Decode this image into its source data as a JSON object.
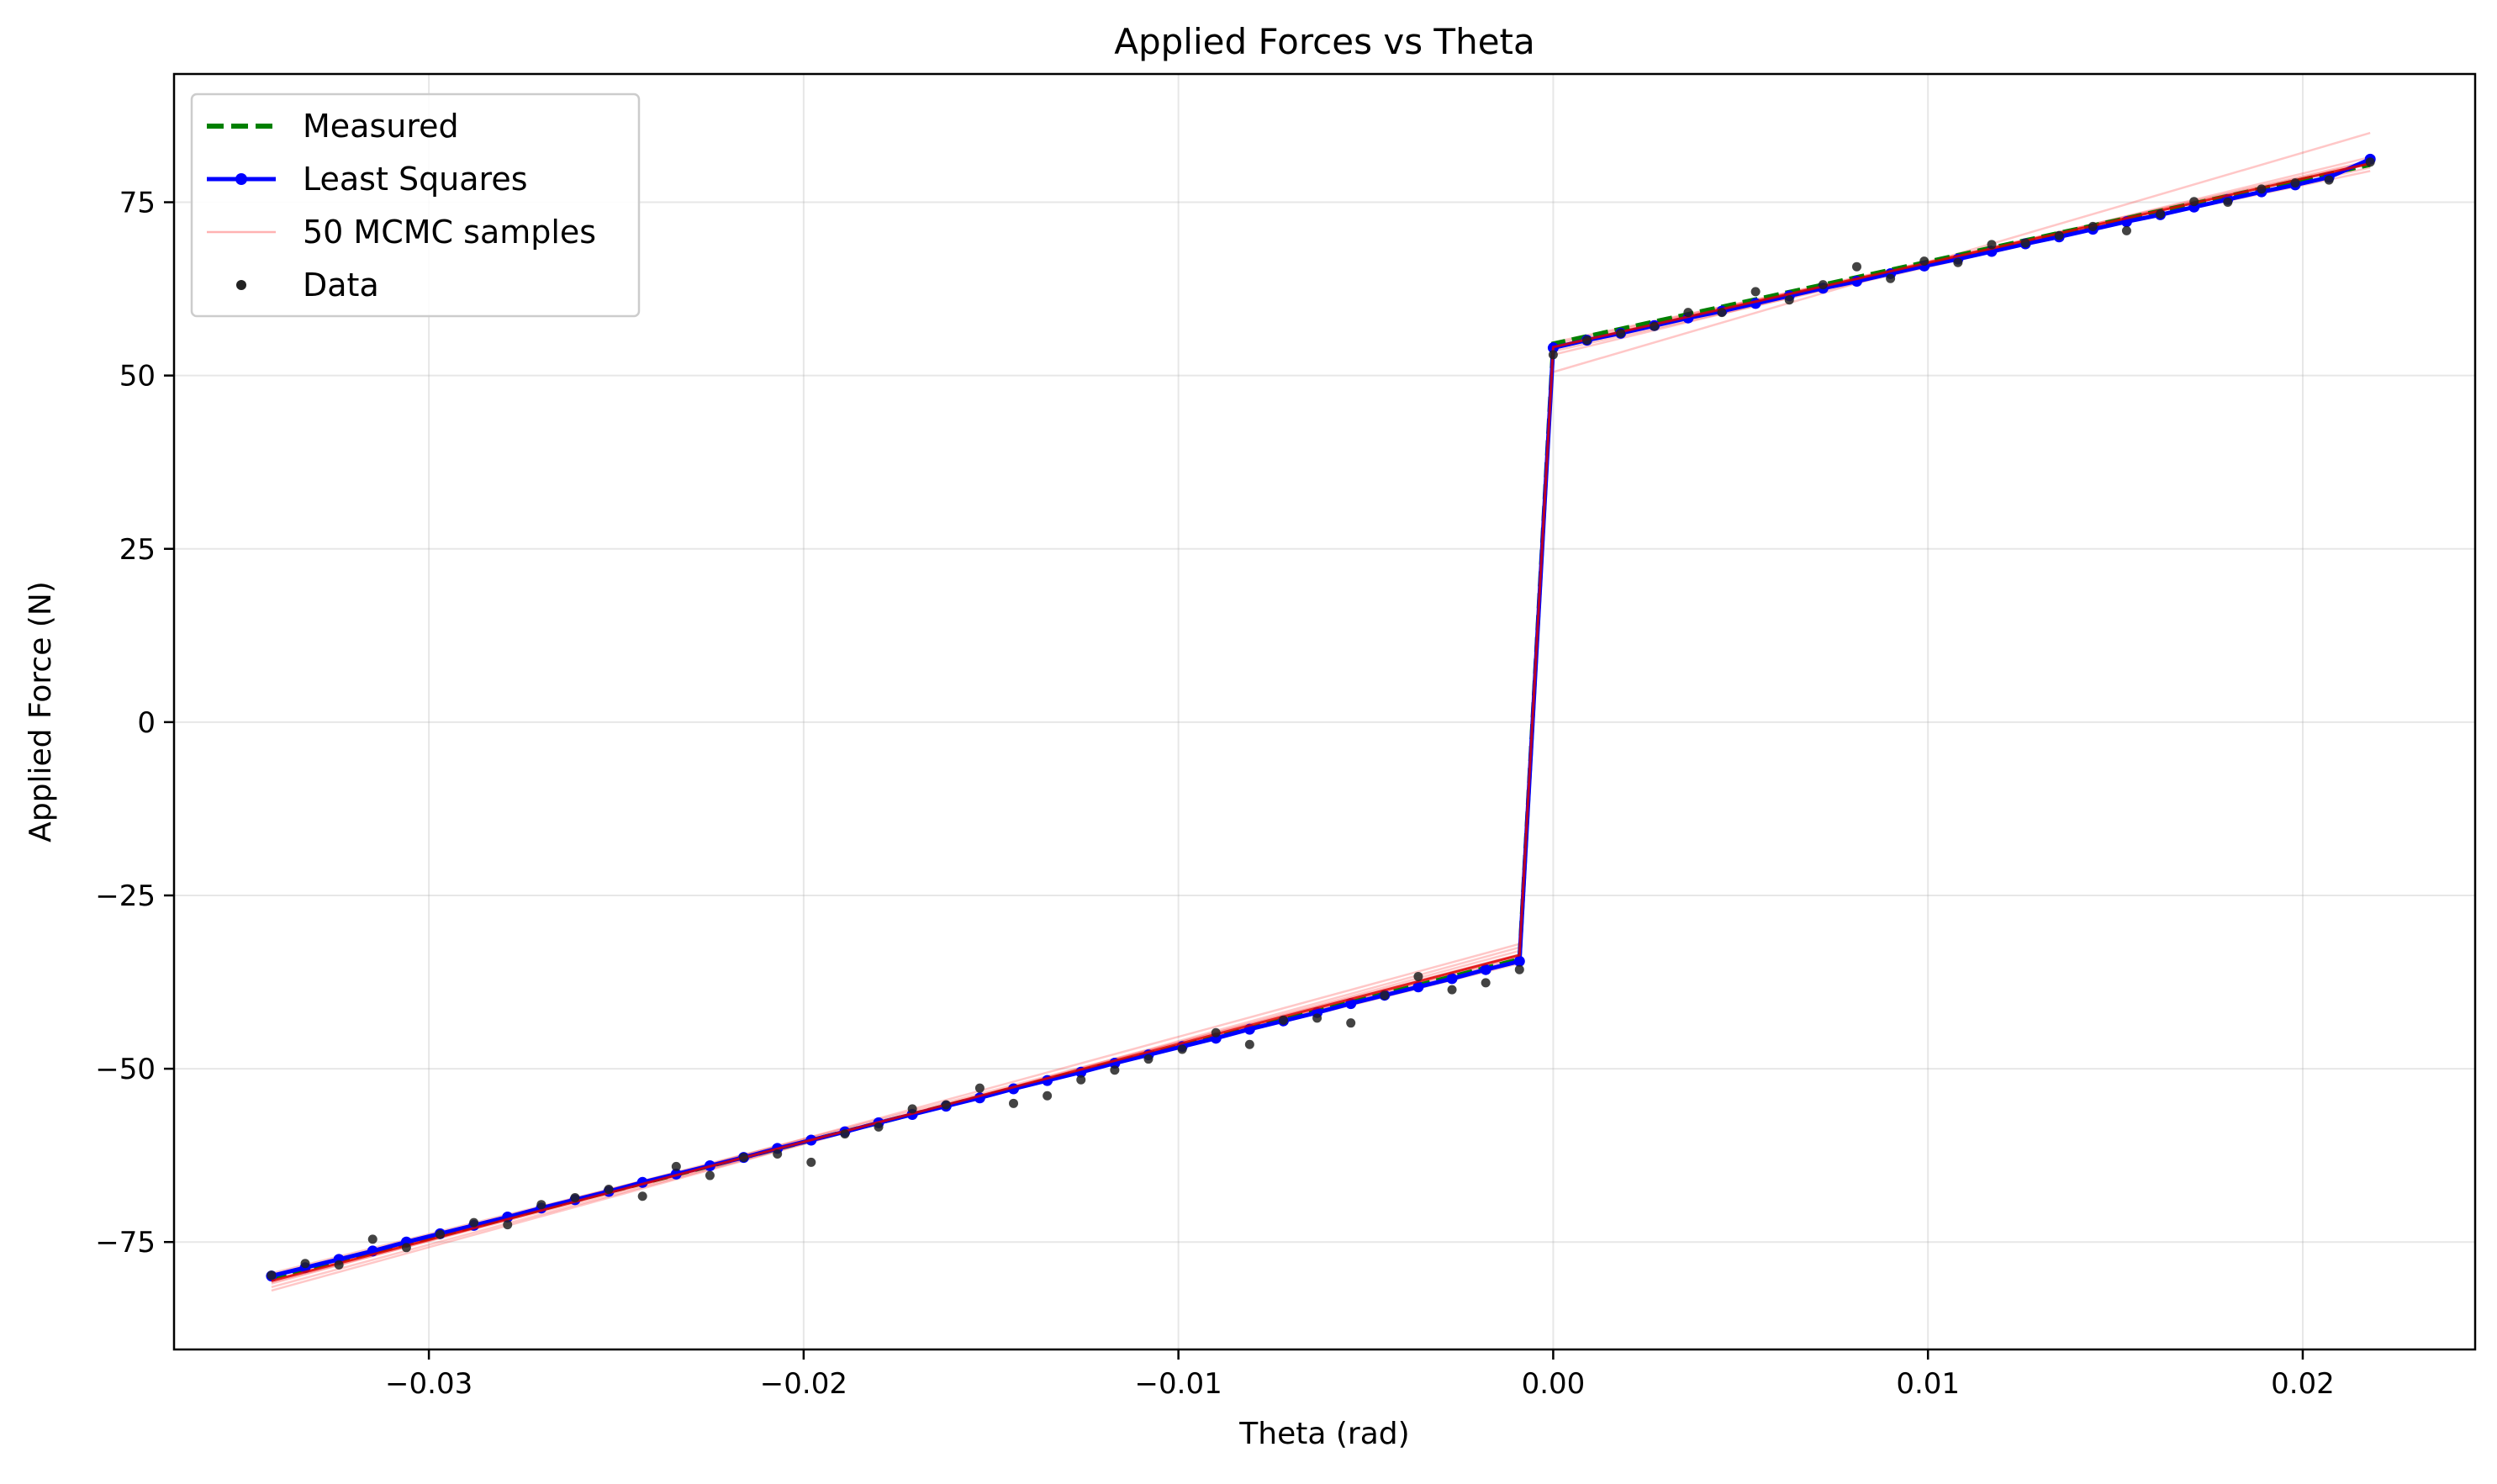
{
  "chart_data": {
    "type": "line",
    "title": "Applied Forces vs Theta",
    "xlabel": "Theta (rad)",
    "ylabel": "Applied Force (N)",
    "xlim": [
      -0.0368,
      0.0246
    ],
    "ylim": [
      -90.5,
      93.5
    ],
    "x_ticks": [
      -0.03,
      -0.02,
      -0.01,
      0.0,
      0.01,
      0.02
    ],
    "x_tick_labels": [
      "−0.03",
      "−0.02",
      "−0.01",
      "0.00",
      "0.01",
      "0.02"
    ],
    "y_ticks": [
      -75,
      -50,
      -25,
      0,
      25,
      50,
      75
    ],
    "y_tick_labels": [
      "−75",
      "−50",
      "−25",
      "0",
      "25",
      "50",
      "75"
    ],
    "grid": true,
    "legend_position": "top-left",
    "colors": {
      "measured": "#008000",
      "least_squares": "#0000ff",
      "mcmc": "#ff0000",
      "data": "#000000"
    },
    "series": [
      {
        "name": "Measured",
        "style": "dashed",
        "color": "#008000",
        "x": [
          -0.0342,
          -0.0009,
          0.0,
          0.0218
        ],
        "y": [
          -80.2,
          -34.2,
          54.6,
          80.4
        ]
      },
      {
        "name": "Least Squares",
        "style": "solid-with-markers",
        "color": "#0000ff",
        "x": [
          -0.0342,
          -0.0333,
          -0.0324,
          -0.0315,
          -0.0306,
          -0.0297,
          -0.0288,
          -0.0279,
          -0.027,
          -0.0261,
          -0.0252,
          -0.0243,
          -0.0234,
          -0.0225,
          -0.0216,
          -0.0207,
          -0.0198,
          -0.0189,
          -0.018,
          -0.0171,
          -0.0162,
          -0.0153,
          -0.0144,
          -0.0135,
          -0.0126,
          -0.0117,
          -0.0108,
          -0.0099,
          -0.009,
          -0.0081,
          -0.0072,
          -0.0063,
          -0.0054,
          -0.0045,
          -0.0036,
          -0.0027,
          -0.0018,
          -0.0009,
          0.0,
          0.0009,
          0.0018,
          0.0027,
          0.0036,
          0.0045,
          0.0054,
          0.0063,
          0.0072,
          0.0081,
          0.009,
          0.0099,
          0.0108,
          0.0117,
          0.0126,
          0.0135,
          0.0144,
          0.0153,
          0.0162,
          0.0171,
          0.018,
          0.0189,
          0.0198,
          0.0207,
          0.0218
        ],
        "y": [
          -79.9,
          -78.7,
          -77.5,
          -76.3,
          -75.0,
          -73.8,
          -72.6,
          -71.4,
          -70.1,
          -68.9,
          -67.7,
          -66.4,
          -65.2,
          -64.0,
          -62.8,
          -61.5,
          -60.3,
          -59.1,
          -57.8,
          -56.6,
          -55.4,
          -54.2,
          -52.9,
          -51.7,
          -50.5,
          -49.2,
          -48.0,
          -46.8,
          -45.6,
          -44.3,
          -43.1,
          -41.9,
          -40.6,
          -39.4,
          -38.2,
          -37.0,
          -35.7,
          -34.5,
          54.0,
          55.1,
          56.1,
          57.2,
          58.3,
          59.3,
          60.4,
          61.5,
          62.6,
          63.6,
          64.7,
          65.8,
          66.8,
          67.9,
          69.0,
          70.0,
          71.1,
          72.2,
          73.2,
          74.3,
          75.4,
          76.5,
          77.5,
          78.6,
          81.2
        ]
      },
      {
        "name": "50 MCMC samples",
        "style": "thin-translucent",
        "color": "#ff0000",
        "samples": [
          {
            "x": [
              -0.0342,
              -0.0009,
              0.0,
              0.0218
            ],
            "y": [
              -81.5,
              -33.0,
              53.5,
              80.0
            ]
          },
          {
            "x": [
              -0.0342,
              -0.0009,
              0.0,
              0.0218
            ],
            "y": [
              -80.5,
              -34.0,
              54.0,
              81.0
            ]
          },
          {
            "x": [
              -0.0342,
              -0.0009,
              0.0,
              0.0218
            ],
            "y": [
              -79.5,
              -34.8,
              54.5,
              80.5
            ]
          },
          {
            "x": [
              -0.0342,
              -0.0009,
              0.0,
              0.0218
            ],
            "y": [
              -82.0,
              -32.5,
              54.8,
              79.5
            ]
          },
          {
            "x": [
              -0.0342,
              -0.0009,
              0.0,
              0.0218
            ],
            "y": [
              -80.0,
              -33.5,
              53.0,
              81.5
            ]
          },
          {
            "x": [
              -0.0342,
              -0.0009,
              0.0,
              0.0218
            ],
            "y": [
              -81.0,
              -32.0,
              54.2,
              80.8
            ]
          },
          {
            "x": [
              -0.0342,
              -0.0009,
              0.0,
              0.0218
            ],
            "y": [
              -80.8,
              -33.8,
              50.5,
              85.0
            ]
          }
        ]
      },
      {
        "name": "Data",
        "style": "scatter",
        "color": "#000000",
        "x": [
          -0.0342,
          -0.0333,
          -0.0324,
          -0.0315,
          -0.0306,
          -0.0297,
          -0.0288,
          -0.0279,
          -0.027,
          -0.0261,
          -0.0252,
          -0.0243,
          -0.0234,
          -0.0225,
          -0.0216,
          -0.0207,
          -0.0198,
          -0.0189,
          -0.018,
          -0.0171,
          -0.0162,
          -0.0153,
          -0.0144,
          -0.0135,
          -0.0126,
          -0.0117,
          -0.0108,
          -0.0099,
          -0.009,
          -0.0081,
          -0.0072,
          -0.0063,
          -0.0054,
          -0.0045,
          -0.0036,
          -0.0027,
          -0.0018,
          -0.0009,
          0.0,
          0.0009,
          0.0018,
          0.0027,
          0.0036,
          0.0045,
          0.0054,
          0.0063,
          0.0072,
          0.0081,
          0.009,
          0.0099,
          0.0108,
          0.0117,
          0.0126,
          0.0135,
          0.0144,
          0.0153,
          0.0162,
          0.0171,
          0.018,
          0.0189,
          0.0198,
          0.0207,
          0.0218
        ],
        "y": [
          -79.8,
          -78.1,
          -78.3,
          -74.6,
          -75.8,
          -73.9,
          -72.2,
          -72.5,
          -69.6,
          -68.6,
          -67.4,
          -68.4,
          -64.1,
          -65.4,
          -62.8,
          -62.3,
          -63.5,
          -59.4,
          -58.4,
          -55.8,
          -55.2,
          -52.8,
          -55.0,
          -53.9,
          -51.6,
          -50.2,
          -48.6,
          -47.2,
          -44.8,
          -46.5,
          -43.0,
          -42.7,
          -43.4,
          -39.4,
          -36.7,
          -38.6,
          -37.6,
          -35.7,
          53.0,
          55.1,
          56.1,
          57.1,
          59.1,
          59.1,
          62.1,
          60.9,
          63.1,
          65.7,
          64.0,
          66.5,
          66.3,
          68.9,
          69.1,
          70.2,
          71.5,
          70.9,
          73.3,
          75.1,
          75.0,
          76.9,
          77.8,
          78.2,
          80.8
        ]
      }
    ]
  }
}
